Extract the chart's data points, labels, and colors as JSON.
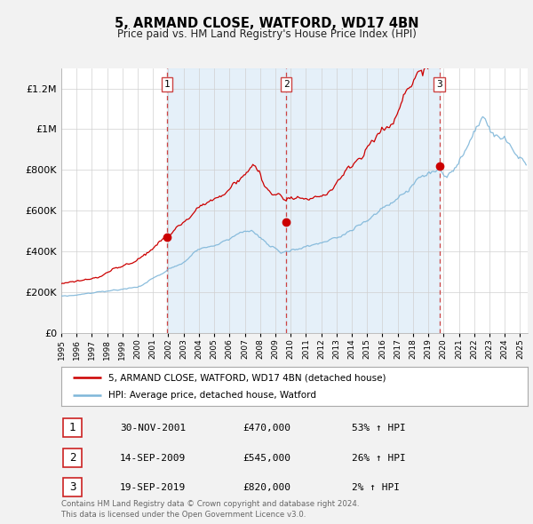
{
  "title": "5, ARMAND CLOSE, WATFORD, WD17 4BN",
  "subtitle": "Price paid vs. HM Land Registry's House Price Index (HPI)",
  "bg_color": "#f2f2f2",
  "plot_bg_color": "#ffffff",
  "grid_color": "#cccccc",
  "hpi_color": "#7eb6d9",
  "price_color": "#cc0000",
  "sale_dates": [
    2001.917,
    2009.708,
    2019.722
  ],
  "sale_prices": [
    470000,
    545000,
    820000
  ],
  "sale_labels": [
    "1",
    "2",
    "3"
  ],
  "vline_color": "#cc4444",
  "shade_color": "#daeaf7",
  "legend_line1": "5, ARMAND CLOSE, WATFORD, WD17 4BN (detached house)",
  "legend_line2": "HPI: Average price, detached house, Watford",
  "table_rows": [
    [
      "1",
      "30-NOV-2001",
      "£470,000",
      "53% ↑ HPI"
    ],
    [
      "2",
      "14-SEP-2009",
      "£545,000",
      "26% ↑ HPI"
    ],
    [
      "3",
      "19-SEP-2019",
      "£820,000",
      "2% ↑ HPI"
    ]
  ],
  "footnote": "Contains HM Land Registry data © Crown copyright and database right 2024.\nThis data is licensed under the Open Government Licence v3.0.",
  "ylim": [
    0,
    1300000
  ],
  "xlim_start": 1995.0,
  "xlim_end": 2025.5
}
